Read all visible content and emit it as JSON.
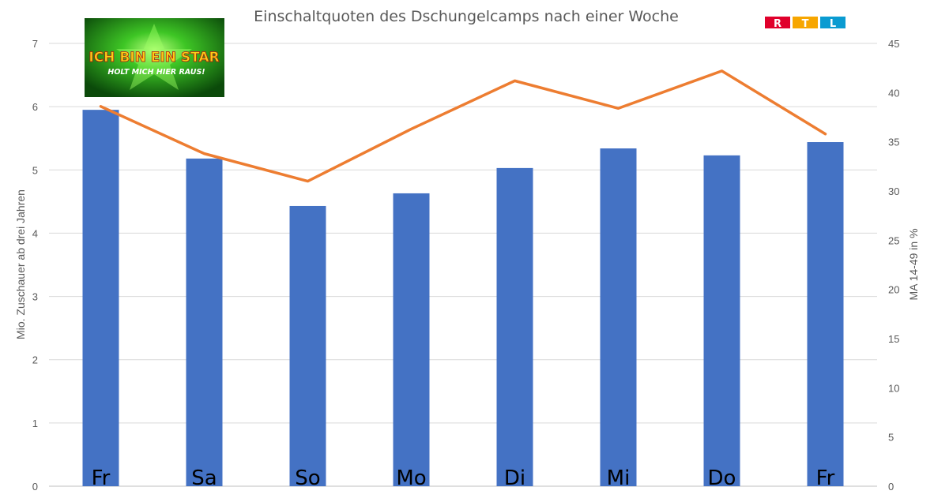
{
  "chart_data": {
    "type": "bar",
    "title": "Einschaltquoten des Dschungelcamps nach einer Woche",
    "categories": [
      "Fr",
      "Sa",
      "So",
      "Mo",
      "Di",
      "Mi",
      "Do",
      "Fr"
    ],
    "series": [
      {
        "type": "bar",
        "axis": "left",
        "color": "#4472C4",
        "values": [
          5.95,
          5.18,
          4.43,
          4.63,
          5.03,
          5.34,
          5.23,
          5.44
        ]
      },
      {
        "type": "line",
        "axis": "right",
        "color": "#ED7D31",
        "values": [
          38.6,
          33.8,
          31.0,
          36.3,
          41.2,
          38.4,
          42.2,
          35.8
        ]
      }
    ],
    "ylabel": "Mio. Zuschauer ab drei Jahren",
    "ylabel_right": "MA 14-49 in %",
    "ylim": [
      0,
      7
    ],
    "yticks": [
      "0",
      "1",
      "2",
      "3",
      "4",
      "5",
      "6",
      "7"
    ],
    "ylim_right": [
      0,
      45
    ],
    "yticks_right": [
      "0",
      "5",
      "10",
      "15",
      "20",
      "25",
      "30",
      "35",
      "40",
      "45"
    ],
    "grid": true,
    "legend": "none"
  },
  "logos": {
    "show_logo": {
      "line1": "ICH BIN EIN STAR",
      "line2": "HOLT MICH HIER RAUS!",
      "colors": {
        "bg": "#1f8a1a",
        "glow": "#7cff4a",
        "text": "#f7d117",
        "outline": "#b3140f"
      }
    },
    "rtl_logo": {
      "letters": [
        "R",
        "T",
        "L"
      ],
      "colors": [
        "#e0002b",
        "#f7a600",
        "#0a9bd1"
      ]
    }
  }
}
